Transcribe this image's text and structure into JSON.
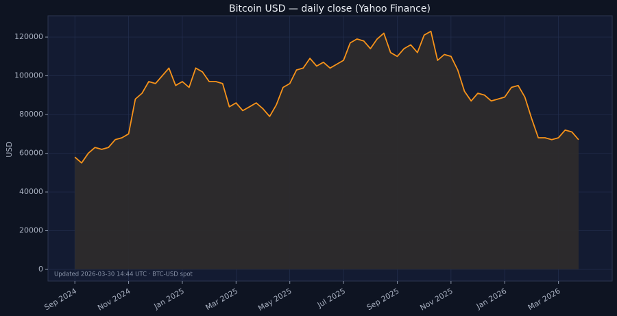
{
  "chart_data": {
    "type": "area",
    "title": "Bitcoin USD — daily close (Yahoo Finance)",
    "y_label": "USD",
    "annotation": "Updated 2026-03-30 14:44 UTC · BTC-USD spot",
    "x": [
      "2024-09",
      "2024-09",
      "2024-09",
      "2024-09",
      "2024-10",
      "2024-10",
      "2024-10",
      "2024-10",
      "2024-11",
      "2024-11",
      "2024-11",
      "2024-11",
      "2024-12",
      "2024-12",
      "2024-12",
      "2024-12",
      "2025-01",
      "2025-01",
      "2025-01",
      "2025-01",
      "2025-02",
      "2025-02",
      "2025-02",
      "2025-02",
      "2025-03",
      "2025-03",
      "2025-03",
      "2025-03",
      "2025-04",
      "2025-04",
      "2025-04",
      "2025-04",
      "2025-05",
      "2025-05",
      "2025-05",
      "2025-05",
      "2025-06",
      "2025-06",
      "2025-06",
      "2025-06",
      "2025-07",
      "2025-07",
      "2025-07",
      "2025-07",
      "2025-08",
      "2025-08",
      "2025-08",
      "2025-08",
      "2025-09",
      "2025-09",
      "2025-09",
      "2025-09",
      "2025-10",
      "2025-10",
      "2025-10",
      "2025-10",
      "2025-11",
      "2025-11",
      "2025-11",
      "2025-11",
      "2025-12",
      "2025-12",
      "2025-12",
      "2025-12",
      "2026-01",
      "2026-01",
      "2026-01",
      "2026-01",
      "2026-02",
      "2026-02",
      "2026-02",
      "2026-02",
      "2026-03",
      "2026-03",
      "2026-03",
      "2026-03"
    ],
    "series": [
      {
        "name": "BTC-USD",
        "color": "#f7931a",
        "fill": "#2d2b2c",
        "values": [
          58000,
          55000,
          60000,
          63000,
          62000,
          63000,
          67000,
          68000,
          70000,
          88000,
          91000,
          97000,
          96000,
          100000,
          104000,
          95000,
          97000,
          94000,
          104000,
          102000,
          97000,
          97000,
          96000,
          84000,
          86000,
          82000,
          84000,
          86000,
          83000,
          79000,
          85000,
          94000,
          96000,
          103000,
          104000,
          109000,
          105000,
          107000,
          104000,
          106000,
          108000,
          117000,
          119000,
          118000,
          114000,
          119000,
          122000,
          112000,
          110000,
          114000,
          116000,
          112000,
          121000,
          123000,
          108000,
          111000,
          110000,
          103000,
          92000,
          87000,
          91000,
          90000,
          87000,
          88000,
          89000,
          94000,
          95000,
          89000,
          78000,
          68000,
          68000,
          67000,
          68000,
          72000,
          71000,
          67000
        ]
      }
    ],
    "xlim": [
      "2024-08",
      "2026-05"
    ],
    "xticks": [
      {
        "value": "2024-09",
        "label": "Sep 2024"
      },
      {
        "value": "2024-11",
        "label": "Nov 2024"
      },
      {
        "value": "2025-01",
        "label": "Jan 2025"
      },
      {
        "value": "2025-03",
        "label": "Mar 2025"
      },
      {
        "value": "2025-05",
        "label": "May 2025"
      },
      {
        "value": "2025-07",
        "label": "Jul 2025"
      },
      {
        "value": "2025-09",
        "label": "Sep 2025"
      },
      {
        "value": "2025-11",
        "label": "Nov 2025"
      },
      {
        "value": "2026-01",
        "label": "Jan 2026"
      },
      {
        "value": "2026-03",
        "label": "Mar 2026"
      }
    ],
    "ylim": [
      -6000,
      131000
    ],
    "yticks": [
      0,
      20000,
      40000,
      60000,
      80000,
      100000,
      120000
    ],
    "grid": true
  }
}
